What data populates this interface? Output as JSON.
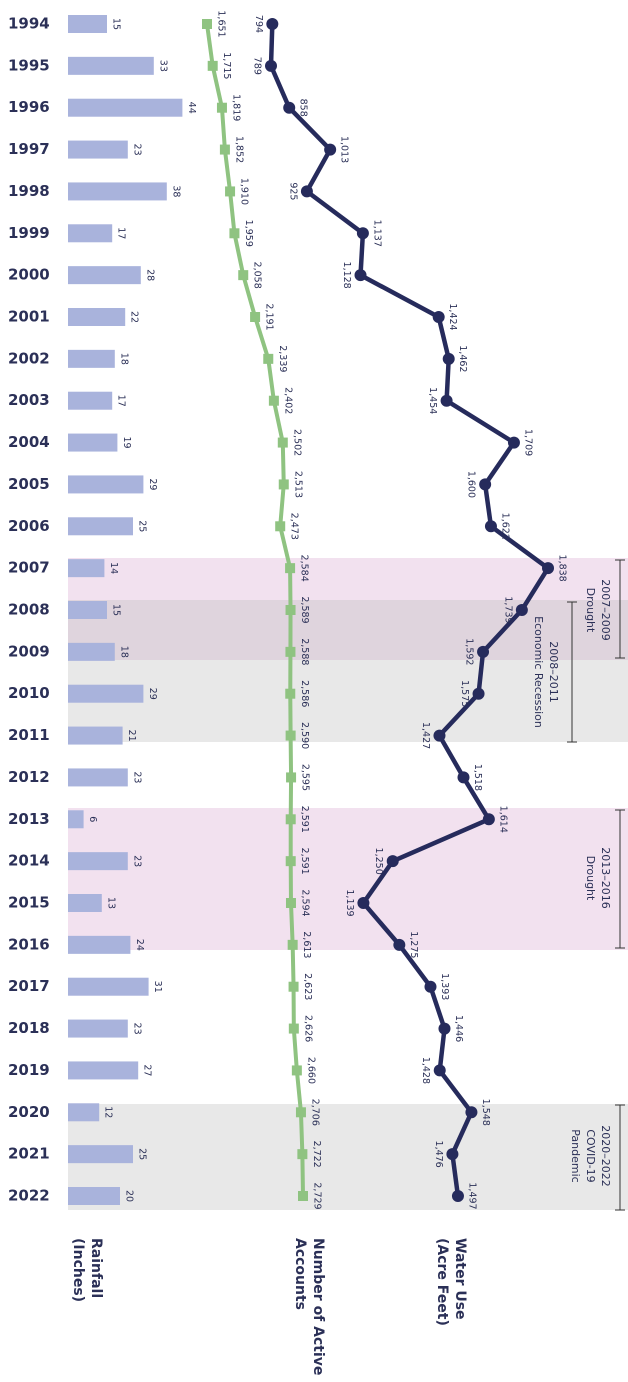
{
  "chart_data": {
    "type": "bar_line",
    "categories": [
      "1994",
      "1995",
      "1996",
      "1997",
      "1998",
      "1999",
      "2000",
      "2001",
      "2002",
      "2003",
      "2004",
      "2005",
      "2006",
      "2007",
      "2008",
      "2009",
      "2010",
      "2011",
      "2012",
      "2013",
      "2014",
      "2015",
      "2016",
      "2017",
      "2018",
      "2019",
      "2020",
      "2021",
      "2022"
    ],
    "series": [
      {
        "name": [
          "Rainfall",
          "(Inches)"
        ],
        "type": "bar",
        "color": "#a9b3dc",
        "values": [
          15,
          33,
          44,
          23,
          38,
          17,
          28,
          22,
          18,
          17,
          19,
          29,
          25,
          14,
          15,
          18,
          29,
          21,
          23,
          6,
          23,
          13,
          24,
          31,
          23,
          27,
          12,
          25,
          20
        ]
      },
      {
        "name": [
          "Number of Active",
          "Accounts"
        ],
        "type": "line",
        "marker": "square",
        "color": "#8fc381",
        "values": [
          1651,
          1715,
          1819,
          1852,
          1910,
          1959,
          2058,
          2191,
          2339,
          2402,
          2502,
          2513,
          2473,
          2584,
          2589,
          2588,
          2586,
          2590,
          2595,
          2591,
          2591,
          2594,
          2613,
          2623,
          2626,
          2660,
          2706,
          2722,
          2729
        ],
        "value_labels": [
          "1,651",
          "1,715",
          "1,819",
          "1,852",
          "1,910",
          "1,959",
          "2,058",
          "2,191",
          "2,339",
          "2,402",
          "2,502",
          "2,513",
          "2,473",
          "2,584",
          "2,589",
          "2,588",
          "2,586",
          "2,590",
          "2,595",
          "2,591",
          "2,591",
          "2,594",
          "2,613",
          "2,623",
          "2,626",
          "2,660",
          "2,706",
          "2,722",
          "2,729"
        ]
      },
      {
        "name": [
          "Water Use",
          "(Acre Feet)"
        ],
        "type": "line",
        "marker": "circle",
        "color": "#262b5c",
        "values": [
          794,
          789,
          858,
          1013,
          925,
          1137,
          1128,
          1424,
          1462,
          1454,
          1709,
          1600,
          1622,
          1838,
          1739,
          1592,
          1575,
          1427,
          1518,
          1614,
          1250,
          1139,
          1275,
          1393,
          1446,
          1428,
          1548,
          1476,
          1497
        ],
        "value_labels": [
          "794",
          "789",
          "858",
          "1,013",
          "925",
          "1,137",
          "1,128",
          "1,424",
          "1,462",
          "1,454",
          "1,709",
          "1,600",
          "1,622",
          "1,838",
          "1,739",
          "1,592",
          "1,575",
          "1,427",
          "1,518",
          "1,614",
          "1,250",
          "1,139",
          "1,275",
          "1,393",
          "1,446",
          "1,428",
          "1,548",
          "1,476",
          "1,497"
        ]
      }
    ],
    "annotations": [
      {
        "years": "2007–2009",
        "text": [
          "Drought"
        ]
      },
      {
        "years": "2008–2011",
        "text": [
          "Economic Recession"
        ]
      },
      {
        "years": "2013–2016",
        "text": [
          "Drought"
        ]
      },
      {
        "years": "2020–2022",
        "text": [
          "COVID-19",
          "Pandemic"
        ]
      }
    ]
  }
}
